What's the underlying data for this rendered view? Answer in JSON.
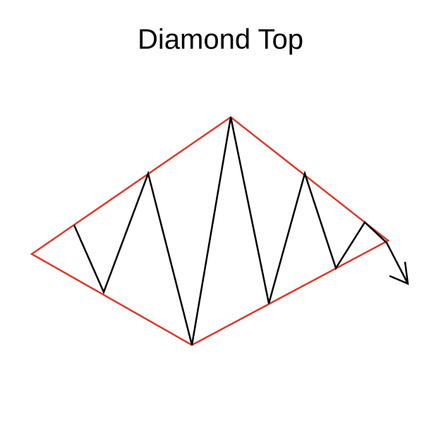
{
  "title": "Diamond Top",
  "colors": {
    "background": "#ffffff",
    "diamond_outline": "#d93a2b",
    "price_path": "#000000",
    "title_text": "#000000"
  },
  "icons": {
    "arrow": "arrow-down-right-icon"
  }
}
